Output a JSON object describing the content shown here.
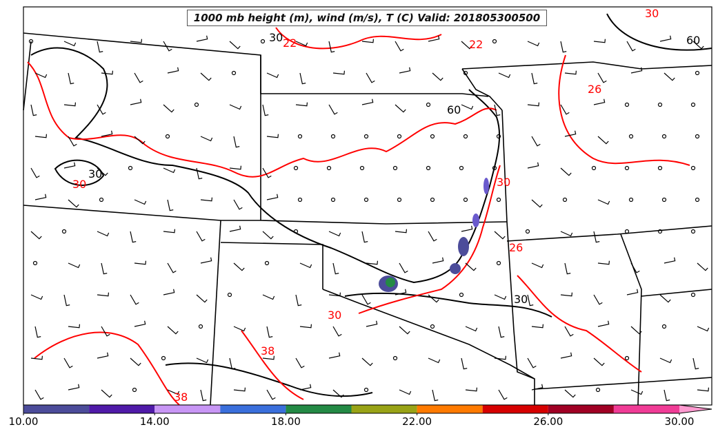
{
  "map": {
    "title": "1000 mb height (m), wind (m/s), T (C) Valid: 201805300500",
    "contour_labels": {
      "temperature": [
        "30",
        "30",
        "38",
        "38",
        "30",
        "26",
        "22",
        "22",
        "30",
        "26"
      ],
      "height": [
        "30",
        "30",
        "60",
        "60",
        "30"
      ]
    },
    "colors": {
      "temperature_contour": "#ff0000",
      "height_contour": "#000000",
      "boundary": "#000000",
      "precip_core": "#3f51b5"
    }
  },
  "colorbar": {
    "min": 10.0,
    "max": 31.0,
    "tick_labels": [
      "10.00",
      "14.00",
      "18.00",
      "22.00",
      "26.00",
      "30.00"
    ],
    "tick_values": [
      10,
      14,
      18,
      22,
      26,
      30
    ],
    "bins": [
      {
        "from": 10,
        "to": 12,
        "color": "#4c4c9a"
      },
      {
        "from": 12,
        "to": 14,
        "color": "#4f1aa8"
      },
      {
        "from": 14,
        "to": 16,
        "color": "#c896f5"
      },
      {
        "from": 16,
        "to": 18,
        "color": "#3a6fdc"
      },
      {
        "from": 18,
        "to": 20,
        "color": "#238a45"
      },
      {
        "from": 20,
        "to": 22,
        "color": "#99a316"
      },
      {
        "from": 22,
        "to": 24,
        "color": "#ff7a00"
      },
      {
        "from": 24,
        "to": 26,
        "color": "#d60000"
      },
      {
        "from": 26,
        "to": 28,
        "color": "#a00024"
      },
      {
        "from": 28,
        "to": 30,
        "color": "#f03c96"
      },
      {
        "from": 30,
        "to": 31,
        "color": "#ff9ad0"
      }
    ]
  }
}
